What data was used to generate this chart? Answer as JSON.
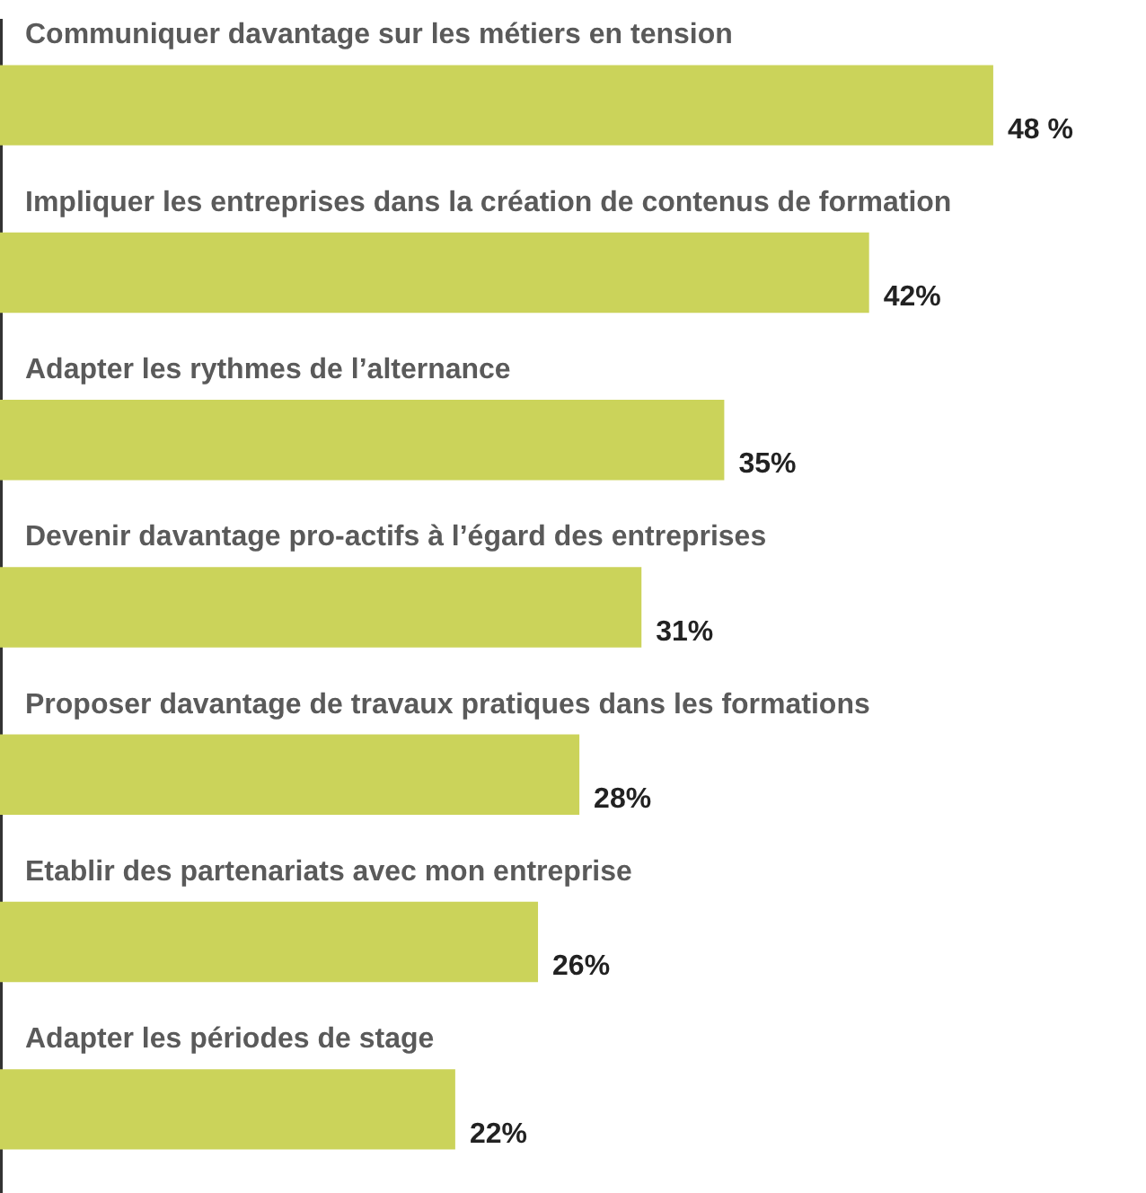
{
  "chart_data": {
    "type": "bar",
    "orientation": "horizontal",
    "categories": [
      "Communiquer davantage sur les métiers en tension",
      "Impliquer les entreprises dans la création de contenus de formation",
      "Adapter les rythmes de l’alternance",
      "Devenir davantage pro-actifs à l’égard des entreprises",
      "Proposer davantage de travaux pratiques dans les formations",
      "Etablir des partenariats avec mon entreprise",
      "Adapter les périodes de stage"
    ],
    "values": [
      48,
      42,
      35,
      31,
      28,
      26,
      22
    ],
    "value_labels": [
      "48 %",
      "42%",
      "35%",
      "31%",
      "28%",
      "26%",
      "22%"
    ],
    "color": "#cbd35a",
    "grid": false,
    "legend": false
  }
}
